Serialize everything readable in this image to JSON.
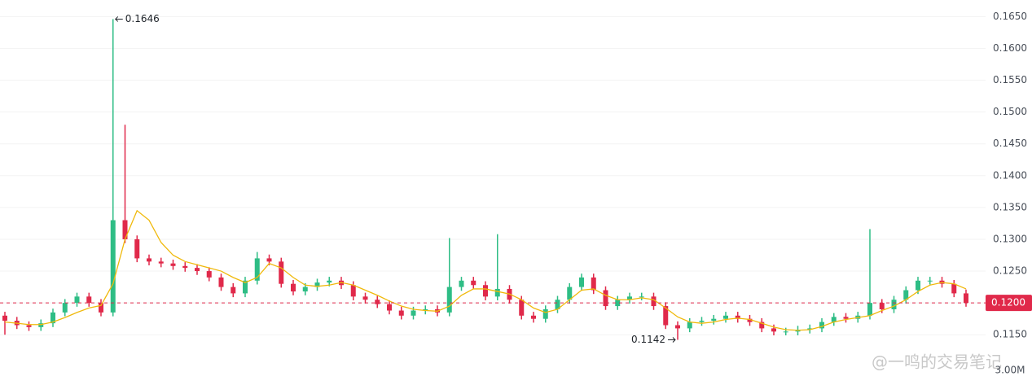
{
  "chart_data": {
    "type": "candlestick",
    "up_color": "#2ebd85",
    "down_color": "#e0294a",
    "ma_color": "#f0b90b",
    "grid": true,
    "ylim": [
      0.1071,
      0.1676
    ],
    "yticks": [
      {
        "value": 0.115,
        "label": "0.1150"
      },
      {
        "value": 0.12,
        "label": "0.1200"
      },
      {
        "value": 0.125,
        "label": "0.1250"
      },
      {
        "value": 0.13,
        "label": "0.1300"
      },
      {
        "value": 0.135,
        "label": "0.1350"
      },
      {
        "value": 0.14,
        "label": "0.1400"
      },
      {
        "value": 0.145,
        "label": "0.1450"
      },
      {
        "value": 0.15,
        "label": "0.1500"
      },
      {
        "value": 0.155,
        "label": "0.1550"
      },
      {
        "value": 0.16,
        "label": "0.1600"
      },
      {
        "value": 0.165,
        "label": "0.1650"
      }
    ],
    "open": [
      0.118,
      0.1172,
      0.1165,
      0.1162,
      0.1168,
      0.1185,
      0.12,
      0.121,
      0.12,
      0.1185,
      0.133,
      0.13,
      0.127,
      0.1265,
      0.1262,
      0.1258,
      0.1255,
      0.125,
      0.124,
      0.1225,
      0.1215,
      0.1235,
      0.127,
      0.1265,
      0.123,
      0.1218,
      0.1225,
      0.1232,
      0.1235,
      0.1228,
      0.121,
      0.1205,
      0.1198,
      0.1188,
      0.118,
      0.1188,
      0.119,
      0.1185,
      0.1225,
      0.1235,
      0.1228,
      0.121,
      0.1222,
      0.1205,
      0.118,
      0.1175,
      0.119,
      0.1205,
      0.1225,
      0.124,
      0.122,
      0.1195,
      0.1205,
      0.121,
      0.121,
      0.1195,
      0.1165,
      0.116,
      0.117,
      0.1172,
      0.1175,
      0.118,
      0.1175,
      0.117,
      0.116,
      0.1155,
      0.1155,
      0.1158,
      0.116,
      0.117,
      0.1178,
      0.1175,
      0.118,
      0.12,
      0.119,
      0.1205,
      0.122,
      0.1235,
      0.1235,
      0.123,
      0.1215
    ],
    "high": [
      0.1186,
      0.1178,
      0.1171,
      0.1174,
      0.1191,
      0.1206,
      0.1216,
      0.1216,
      0.1206,
      0.1646,
      0.148,
      0.1306,
      0.1276,
      0.1271,
      0.1268,
      0.1264,
      0.1261,
      0.1256,
      0.1246,
      0.1231,
      0.1241,
      0.128,
      0.1276,
      0.1271,
      0.1236,
      0.1231,
      0.1238,
      0.1241,
      0.1241,
      0.1234,
      0.1216,
      0.1211,
      0.1204,
      0.1194,
      0.1194,
      0.1196,
      0.1196,
      0.1302,
      0.1241,
      0.1241,
      0.1234,
      0.1308,
      0.1228,
      0.1211,
      0.1186,
      0.1196,
      0.1211,
      0.1231,
      0.1246,
      0.1246,
      0.1226,
      0.1211,
      0.1216,
      0.1216,
      0.1216,
      0.1201,
      0.1171,
      0.1176,
      0.1178,
      0.1181,
      0.1186,
      0.1186,
      0.1181,
      0.1176,
      0.1166,
      0.1161,
      0.1164,
      0.1166,
      0.1176,
      0.1184,
      0.1184,
      0.1186,
      0.1316,
      0.1206,
      0.1211,
      0.1226,
      0.1241,
      0.1241,
      0.1241,
      0.1236,
      0.1221
    ],
    "low": [
      0.115,
      0.1159,
      0.1156,
      0.1156,
      0.1162,
      0.1179,
      0.1194,
      0.1194,
      0.1179,
      0.1179,
      0.1294,
      0.1264,
      0.1259,
      0.1256,
      0.1252,
      0.1249,
      0.1244,
      0.1234,
      0.1219,
      0.1209,
      0.1209,
      0.1229,
      0.1259,
      0.1224,
      0.1212,
      0.1212,
      0.1219,
      0.1226,
      0.1222,
      0.1204,
      0.1199,
      0.1192,
      0.1182,
      0.1174,
      0.1174,
      0.1182,
      0.1179,
      0.1179,
      0.1219,
      0.1222,
      0.1204,
      0.1204,
      0.1199,
      0.1174,
      0.1169,
      0.1169,
      0.1184,
      0.1199,
      0.1219,
      0.1214,
      0.1189,
      0.1189,
      0.1199,
      0.1204,
      0.1189,
      0.1159,
      0.1142,
      0.1154,
      0.1164,
      0.1166,
      0.1169,
      0.1169,
      0.1164,
      0.1154,
      0.1149,
      0.1149,
      0.1149,
      0.1152,
      0.1154,
      0.1164,
      0.1169,
      0.1169,
      0.1174,
      0.1184,
      0.1184,
      0.1199,
      0.1214,
      0.1229,
      0.1224,
      0.1209,
      0.1194
    ],
    "close": [
      0.1172,
      0.1165,
      0.1162,
      0.1168,
      0.1185,
      0.12,
      0.121,
      0.12,
      0.1185,
      0.133,
      0.13,
      0.127,
      0.1265,
      0.1262,
      0.1258,
      0.1255,
      0.125,
      0.124,
      0.1225,
      0.1215,
      0.1235,
      0.127,
      0.1265,
      0.123,
      0.1218,
      0.1225,
      0.1232,
      0.1235,
      0.1228,
      0.121,
      0.1205,
      0.1198,
      0.1188,
      0.118,
      0.1188,
      0.119,
      0.1185,
      0.1225,
      0.1235,
      0.1228,
      0.121,
      0.1222,
      0.1205,
      0.118,
      0.1175,
      0.119,
      0.1205,
      0.1225,
      0.124,
      0.122,
      0.1195,
      0.1205,
      0.121,
      0.121,
      0.1195,
      0.1165,
      0.116,
      0.117,
      0.1172,
      0.1175,
      0.118,
      0.1175,
      0.117,
      0.116,
      0.1155,
      0.1155,
      0.1158,
      0.116,
      0.117,
      0.1178,
      0.1175,
      0.118,
      0.12,
      0.119,
      0.1205,
      0.122,
      0.1235,
      0.1235,
      0.123,
      0.1215,
      0.12
    ],
    "ma": [
      0.117,
      0.1168,
      0.1166,
      0.1166,
      0.117,
      0.1177,
      0.1185,
      0.1192,
      0.1196,
      0.123,
      0.13,
      0.1345,
      0.133,
      0.1295,
      0.1275,
      0.1265,
      0.126,
      0.1255,
      0.125,
      0.124,
      0.1232,
      0.124,
      0.1262,
      0.1255,
      0.124,
      0.1228,
      0.1226,
      0.1228,
      0.1232,
      0.1228,
      0.122,
      0.1212,
      0.1203,
      0.1195,
      0.119,
      0.1188,
      0.1187,
      0.1195,
      0.1212,
      0.1222,
      0.1222,
      0.1218,
      0.1214,
      0.1205,
      0.1192,
      0.1185,
      0.119,
      0.1205,
      0.122,
      0.1222,
      0.1212,
      0.1205,
      0.1205,
      0.1208,
      0.1205,
      0.1192,
      0.1178,
      0.117,
      0.1168,
      0.117,
      0.1174,
      0.1176,
      0.1174,
      0.1168,
      0.1162,
      0.1158,
      0.1157,
      0.1158,
      0.1163,
      0.117,
      0.1174,
      0.1177,
      0.118,
      0.1188,
      0.1195,
      0.1205,
      0.1218,
      0.1228,
      0.1232,
      0.123,
      0.1222
    ],
    "high_marker": 0.1646,
    "high_index": 9,
    "low_marker": 0.1142,
    "low_index": 56,
    "current_price": {
      "value": 0.12,
      "label": "0.1200"
    },
    "volume_label": "3.00M",
    "watermark": "@一鸣的交易笔记"
  }
}
